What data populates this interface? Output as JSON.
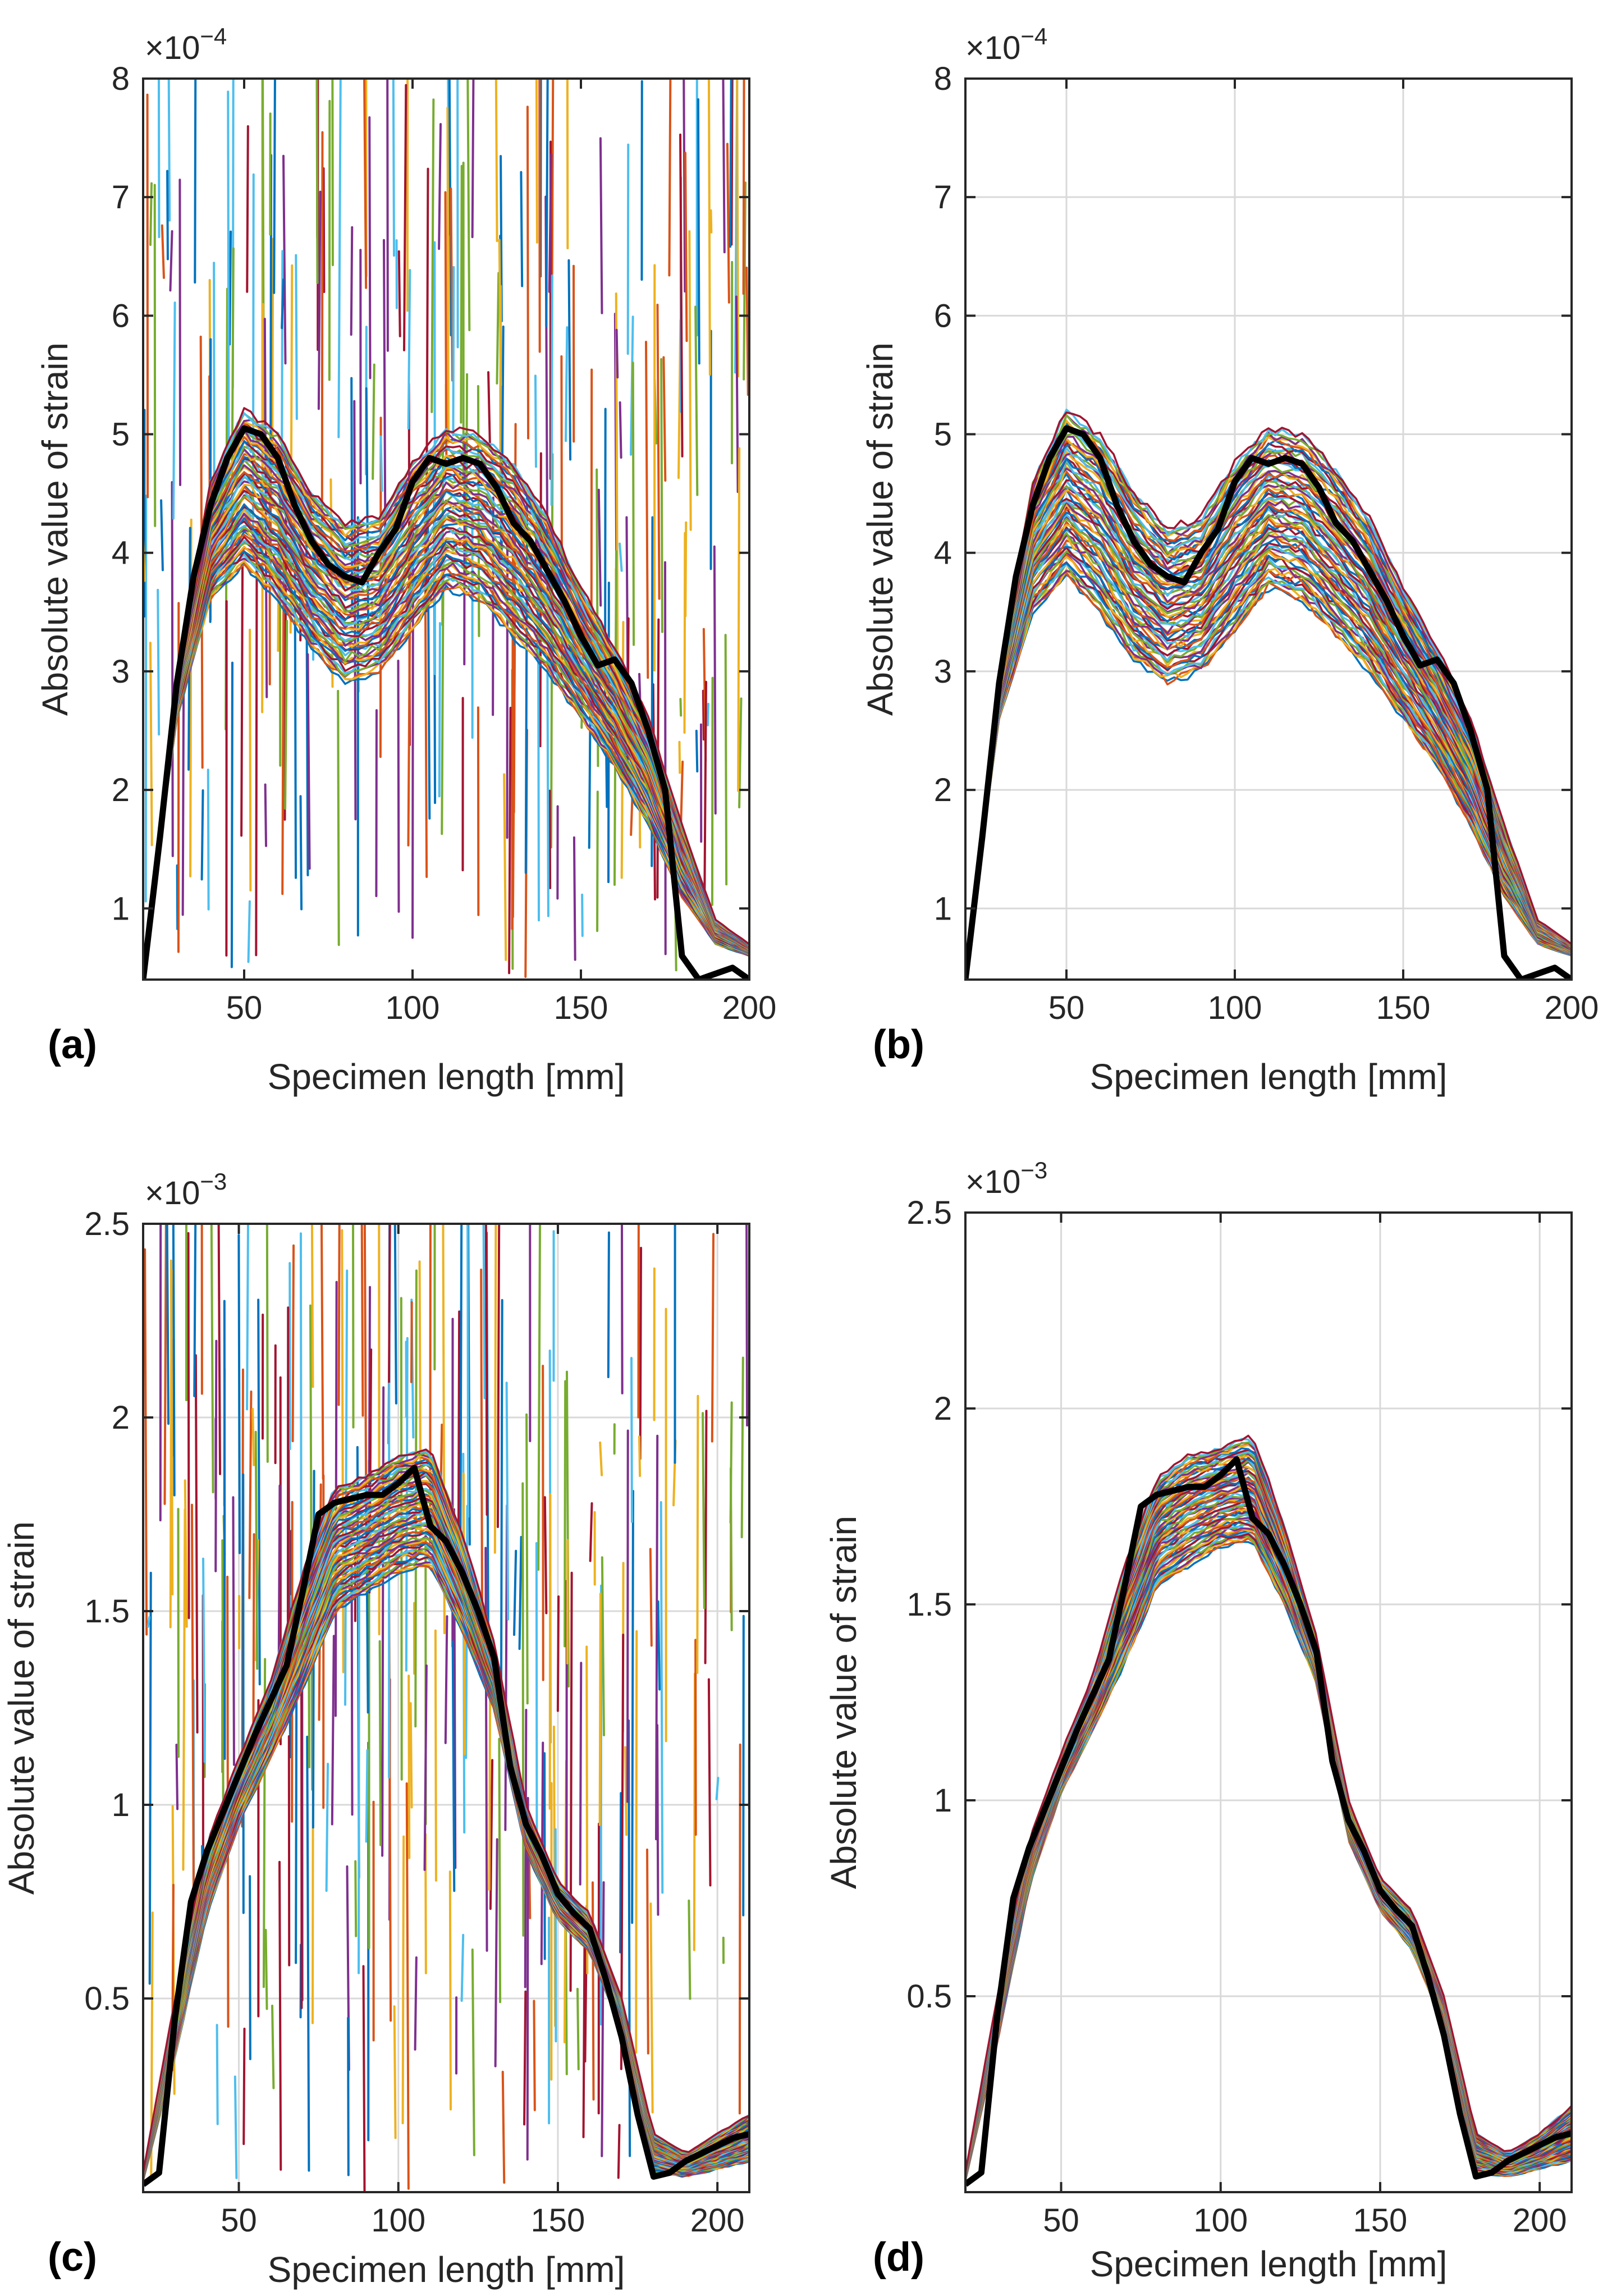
{
  "colors": {
    "mean": "#000000",
    "grid": "#d9d9d9",
    "axes": "#262626",
    "palette": [
      "#0072BD",
      "#D95319",
      "#EDB120",
      "#7E2F8E",
      "#77AC30",
      "#4DBEEE",
      "#A2142F"
    ]
  },
  "chart_data": [
    {
      "type": "line",
      "panel_label": "(a)",
      "xlabel": "Specimen length [mm]",
      "ylabel": "Absolute value of strain",
      "exponent": {
        "base": "×10",
        "power": "−4"
      },
      "xlim": [
        20,
        200
      ],
      "ylim": [
        0.4,
        8
      ],
      "xticks": [
        50,
        100,
        150,
        200
      ],
      "xtick_labels": [
        "50",
        "100",
        "150",
        "200"
      ],
      "yticks": [
        1,
        2,
        3,
        4,
        5,
        6,
        7,
        8
      ],
      "ytick_labels": [
        "1",
        "2",
        "3",
        "4",
        "5",
        "6",
        "7",
        "8"
      ],
      "grid": false,
      "noisy": true,
      "mean_curve": {
        "name": "mean",
        "x": [
          20,
          25,
          30,
          35,
          40,
          45,
          50,
          55,
          60,
          65,
          70,
          75,
          80,
          85,
          90,
          95,
          100,
          105,
          110,
          115,
          120,
          125,
          130,
          135,
          140,
          145,
          150,
          155,
          160,
          165,
          170,
          175,
          180,
          185,
          190,
          195,
          200
        ],
        "y": [
          0.4,
          1.6,
          2.9,
          3.8,
          4.4,
          4.8,
          5.05,
          5.0,
          4.8,
          4.4,
          4.1,
          3.9,
          3.8,
          3.75,
          4.0,
          4.2,
          4.6,
          4.8,
          4.75,
          4.8,
          4.75,
          4.55,
          4.25,
          4.1,
          3.85,
          3.6,
          3.3,
          3.05,
          3.1,
          2.9,
          2.5,
          2.0,
          0.6,
          0.4,
          0.45,
          0.5,
          0.4
        ]
      },
      "band_curves": [
        {
          "name": "upper envelope",
          "x": [
            20,
            30,
            40,
            50,
            60,
            70,
            80,
            90,
            100,
            110,
            120,
            130,
            140,
            150,
            160,
            170,
            180,
            190,
            200
          ],
          "y": [
            0.5,
            3.0,
            4.6,
            5.2,
            5.0,
            4.5,
            4.25,
            4.3,
            4.75,
            5.05,
            5.0,
            4.75,
            4.3,
            3.7,
            3.2,
            2.6,
            1.7,
            0.9,
            0.7
          ]
        },
        {
          "name": "lower envelope",
          "x": [
            20,
            30,
            40,
            50,
            60,
            70,
            80,
            90,
            100,
            110,
            120,
            130,
            140,
            150,
            160,
            170,
            180,
            190,
            200
          ],
          "y": [
            0.5,
            2.6,
            3.6,
            3.9,
            3.6,
            3.2,
            2.9,
            3.0,
            3.35,
            3.7,
            3.6,
            3.3,
            3.0,
            2.6,
            2.2,
            1.7,
            1.1,
            0.7,
            0.6
          ]
        }
      ]
    },
    {
      "type": "line",
      "panel_label": "(b)",
      "xlabel": "Specimen length [mm]",
      "ylabel": "Absolute value of strain",
      "exponent": {
        "base": "×10",
        "power": "−4"
      },
      "xlim": [
        20,
        200
      ],
      "ylim": [
        0.4,
        8
      ],
      "xticks": [
        50,
        100,
        150,
        200
      ],
      "xtick_labels": [
        "50",
        "100",
        "150",
        "200"
      ],
      "yticks": [
        1,
        2,
        3,
        4,
        5,
        6,
        7,
        8
      ],
      "ytick_labels": [
        "1",
        "2",
        "3",
        "4",
        "5",
        "6",
        "7",
        "8"
      ],
      "grid": true,
      "noisy": false,
      "mean_curve": {
        "name": "mean",
        "x": [
          20,
          25,
          30,
          35,
          40,
          45,
          50,
          55,
          60,
          65,
          70,
          75,
          80,
          85,
          90,
          95,
          100,
          105,
          110,
          115,
          120,
          125,
          130,
          135,
          140,
          145,
          150,
          155,
          160,
          165,
          170,
          175,
          180,
          185,
          190,
          195,
          200
        ],
        "y": [
          0.4,
          1.6,
          2.9,
          3.8,
          4.4,
          4.8,
          5.05,
          5.0,
          4.8,
          4.4,
          4.1,
          3.9,
          3.8,
          3.75,
          4.0,
          4.2,
          4.6,
          4.8,
          4.75,
          4.8,
          4.75,
          4.55,
          4.25,
          4.1,
          3.85,
          3.6,
          3.3,
          3.05,
          3.1,
          2.9,
          2.5,
          2.0,
          0.6,
          0.4,
          0.45,
          0.5,
          0.4
        ]
      },
      "band_curves": [
        {
          "name": "upper envelope",
          "x": [
            20,
            30,
            40,
            50,
            60,
            70,
            80,
            90,
            100,
            110,
            120,
            130,
            140,
            150,
            160,
            170,
            180,
            190,
            200
          ],
          "y": [
            0.5,
            3.0,
            4.6,
            5.2,
            5.0,
            4.5,
            4.2,
            4.3,
            4.75,
            5.05,
            5.0,
            4.7,
            4.3,
            3.7,
            3.2,
            2.6,
            1.7,
            0.9,
            0.7
          ]
        },
        {
          "name": "lower envelope",
          "x": [
            20,
            30,
            40,
            50,
            60,
            70,
            80,
            90,
            100,
            110,
            120,
            130,
            140,
            150,
            160,
            170,
            180,
            190,
            200
          ],
          "y": [
            0.5,
            2.6,
            3.5,
            3.8,
            3.5,
            3.1,
            2.9,
            3.0,
            3.35,
            3.7,
            3.6,
            3.3,
            3.0,
            2.6,
            2.2,
            1.7,
            1.1,
            0.7,
            0.6
          ]
        }
      ]
    },
    {
      "type": "line",
      "panel_label": "(c)",
      "xlabel": "Specimen length [mm]",
      "ylabel": "Absolute value of strain",
      "exponent": {
        "base": "×10",
        "power": "−3"
      },
      "xlim": [
        20,
        210
      ],
      "ylim": [
        0,
        2.5
      ],
      "xticks": [
        50,
        100,
        150,
        200
      ],
      "xtick_labels": [
        "50",
        "100",
        "150",
        "200"
      ],
      "yticks": [
        0.5,
        1,
        1.5,
        2,
        2.5
      ],
      "ytick_labels": [
        "0.5",
        "1",
        "1.5",
        "2",
        "2.5"
      ],
      "grid": true,
      "noisy": true,
      "mean_curve": {
        "name": "mean",
        "x": [
          20,
          25,
          30,
          35,
          40,
          45,
          50,
          55,
          60,
          65,
          70,
          75,
          80,
          85,
          90,
          95,
          100,
          105,
          110,
          115,
          120,
          125,
          130,
          135,
          140,
          145,
          150,
          155,
          160,
          165,
          170,
          175,
          180,
          185,
          190,
          195,
          200,
          205,
          210
        ],
        "y": [
          0.02,
          0.05,
          0.45,
          0.75,
          0.88,
          0.98,
          1.08,
          1.18,
          1.27,
          1.36,
          1.55,
          1.75,
          1.78,
          1.79,
          1.8,
          1.8,
          1.83,
          1.87,
          1.72,
          1.68,
          1.6,
          1.5,
          1.38,
          1.1,
          0.95,
          0.87,
          0.77,
          0.72,
          0.68,
          0.55,
          0.4,
          0.2,
          0.04,
          0.05,
          0.08,
          0.1,
          0.12,
          0.14,
          0.15
        ]
      },
      "band_curves": [
        {
          "name": "upper envelope",
          "x": [
            20,
            30,
            40,
            50,
            60,
            70,
            80,
            90,
            100,
            110,
            120,
            130,
            140,
            150,
            160,
            170,
            180,
            190,
            200,
            210
          ],
          "y": [
            0.05,
            0.5,
            0.9,
            1.12,
            1.32,
            1.6,
            1.82,
            1.85,
            1.9,
            1.92,
            1.7,
            1.42,
            1.0,
            0.8,
            0.72,
            0.5,
            0.15,
            0.1,
            0.15,
            0.2
          ]
        },
        {
          "name": "lower envelope",
          "x": [
            20,
            30,
            40,
            50,
            60,
            70,
            80,
            90,
            100,
            110,
            120,
            130,
            140,
            150,
            160,
            170,
            180,
            190,
            200,
            210
          ],
          "y": [
            0.03,
            0.35,
            0.72,
            0.95,
            1.12,
            1.3,
            1.5,
            1.55,
            1.6,
            1.62,
            1.45,
            1.25,
            0.88,
            0.7,
            0.62,
            0.42,
            0.05,
            0.04,
            0.06,
            0.08
          ]
        }
      ]
    },
    {
      "type": "line",
      "panel_label": "(d)",
      "xlabel": "Specimen length [mm]",
      "ylabel": "Absolute value of strain",
      "exponent": {
        "base": "×10",
        "power": "−3"
      },
      "xlim": [
        20,
        210
      ],
      "ylim": [
        0,
        2.5
      ],
      "xticks": [
        50,
        100,
        150,
        200
      ],
      "xtick_labels": [
        "50",
        "100",
        "150",
        "200"
      ],
      "yticks": [
        0.5,
        1,
        1.5,
        2,
        2.5
      ],
      "ytick_labels": [
        "0.5",
        "1",
        "1.5",
        "2",
        "2.5"
      ],
      "grid": true,
      "noisy": false,
      "mean_curve": {
        "name": "mean",
        "x": [
          20,
          25,
          30,
          35,
          40,
          45,
          50,
          55,
          60,
          65,
          70,
          75,
          80,
          85,
          90,
          95,
          100,
          105,
          110,
          115,
          120,
          125,
          130,
          135,
          140,
          145,
          150,
          155,
          160,
          165,
          170,
          175,
          180,
          185,
          190,
          195,
          200,
          205,
          210
        ],
        "y": [
          0.02,
          0.05,
          0.45,
          0.75,
          0.88,
          0.98,
          1.08,
          1.18,
          1.27,
          1.36,
          1.55,
          1.75,
          1.78,
          1.79,
          1.8,
          1.8,
          1.83,
          1.87,
          1.72,
          1.68,
          1.6,
          1.5,
          1.38,
          1.1,
          0.95,
          0.87,
          0.77,
          0.72,
          0.68,
          0.55,
          0.4,
          0.2,
          0.04,
          0.05,
          0.08,
          0.1,
          0.12,
          0.14,
          0.15
        ]
      },
      "band_curves": [
        {
          "name": "upper envelope",
          "x": [
            20,
            30,
            40,
            50,
            60,
            70,
            80,
            90,
            100,
            110,
            120,
            130,
            140,
            150,
            160,
            170,
            180,
            190,
            200,
            210
          ],
          "y": [
            0.05,
            0.5,
            0.9,
            1.12,
            1.32,
            1.6,
            1.82,
            1.88,
            1.9,
            1.93,
            1.7,
            1.42,
            1.0,
            0.8,
            0.72,
            0.5,
            0.15,
            0.1,
            0.15,
            0.22
          ]
        },
        {
          "name": "lower envelope",
          "x": [
            20,
            30,
            40,
            50,
            60,
            70,
            80,
            90,
            100,
            110,
            120,
            130,
            140,
            150,
            160,
            170,
            180,
            190,
            200,
            210
          ],
          "y": [
            0.03,
            0.38,
            0.78,
            1.02,
            1.18,
            1.35,
            1.55,
            1.6,
            1.65,
            1.66,
            1.5,
            1.3,
            0.9,
            0.72,
            0.62,
            0.42,
            0.05,
            0.04,
            0.06,
            0.08
          ]
        }
      ]
    }
  ]
}
